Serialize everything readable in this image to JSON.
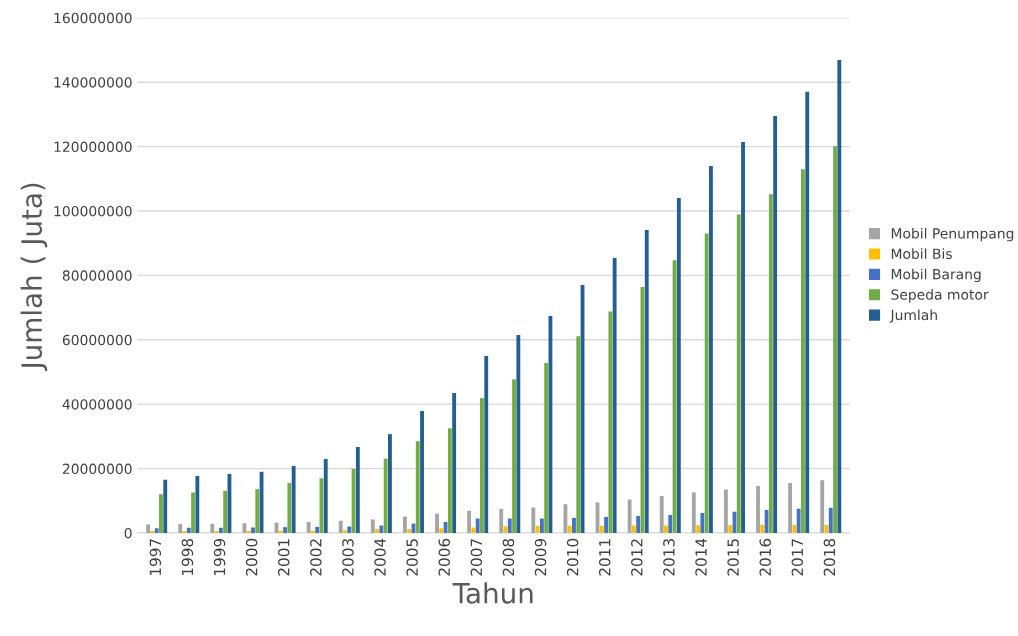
{
  "chart_data": {
    "type": "bar",
    "xlabel": "Tahun",
    "ylabel": "Jumlah ( Juta)",
    "categories": [
      "1997",
      "1998",
      "1999",
      "2000",
      "2001",
      "2002",
      "2003",
      "2004",
      "2005",
      "2006",
      "2007",
      "2008",
      "2009",
      "2010",
      "2011",
      "2012",
      "2013",
      "2014",
      "2015",
      "2016",
      "2017",
      "2018"
    ],
    "series": [
      {
        "name": "Mobil Penumpang",
        "color": "#a5a5a5",
        "values": [
          2600000,
          2800000,
          2900000,
          3000000,
          3200000,
          3400000,
          3800000,
          4200000,
          5100000,
          6000000,
          6900000,
          7500000,
          7900000,
          8900000,
          9500000,
          10400000,
          11500000,
          12600000,
          13500000,
          14600000,
          15500000,
          16400000
        ]
      },
      {
        "name": "Mobil Bis",
        "color": "#ffc000",
        "values": [
          600000,
          600000,
          600000,
          700000,
          700000,
          700000,
          800000,
          1200000,
          1200000,
          1500000,
          1700000,
          2100000,
          2200000,
          2200000,
          2200000,
          2300000,
          2300000,
          2400000,
          2400000,
          2500000,
          2500000,
          2500000
        ]
      },
      {
        "name": "Mobil Barang",
        "color": "#4472c4",
        "values": [
          1500000,
          1600000,
          1600000,
          1700000,
          1800000,
          1900000,
          2000000,
          2300000,
          2900000,
          3400000,
          4500000,
          4500000,
          4500000,
          4700000,
          5000000,
          5300000,
          5600000,
          6200000,
          6600000,
          7100000,
          7500000,
          7800000
        ]
      },
      {
        "name": "Sepeda motor",
        "color": "#70ad47",
        "values": [
          12000000,
          12600000,
          13100000,
          13600000,
          15500000,
          17000000,
          19900000,
          23100000,
          28500000,
          32500000,
          41900000,
          47700000,
          52800000,
          61100000,
          68800000,
          76400000,
          84700000,
          93000000,
          98900000,
          105200000,
          113000000,
          120100000
        ]
      },
      {
        "name": "Jumlah",
        "color": "#255e91",
        "values": [
          16500000,
          17700000,
          18300000,
          19000000,
          20800000,
          23000000,
          26700000,
          30700000,
          37900000,
          43500000,
          55000000,
          61500000,
          67400000,
          77000000,
          85400000,
          94100000,
          104000000,
          114000000,
          121400000,
          129500000,
          137000000,
          146900000
        ]
      }
    ],
    "ylim": [
      0,
      160000000
    ],
    "yticks": [
      0,
      20000000,
      40000000,
      60000000,
      80000000,
      100000000,
      120000000,
      140000000,
      160000000
    ],
    "grid": "y",
    "legend": "right"
  }
}
